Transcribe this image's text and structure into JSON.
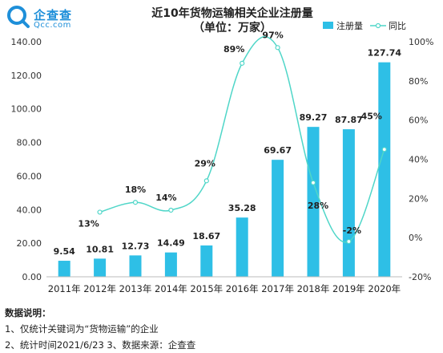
{
  "logo": {
    "name": "企查查",
    "domain": "Qcc.com"
  },
  "chart_data": {
    "type": "bar",
    "title": "近10年货物运输相关企业注册量",
    "subtitle": "（单位：万家）",
    "categories": [
      "2011年",
      "2012年",
      "2013年",
      "2014年",
      "2015年",
      "2016年",
      "2017年",
      "2018年",
      "2019年",
      "2020年"
    ],
    "series": [
      {
        "name": "注册量",
        "type": "bar",
        "axis": "left",
        "color": "#2ebfe6",
        "values": [
          9.54,
          10.81,
          12.73,
          14.49,
          18.67,
          35.28,
          69.67,
          89.27,
          87.87,
          127.74
        ],
        "labels": [
          "9.54",
          "10.81",
          "12.73",
          "14.49",
          "18.67",
          "35.28",
          "69.67",
          "89.27",
          "87.87",
          "127.74"
        ]
      },
      {
        "name": "同比",
        "type": "line",
        "axis": "right",
        "color": "#4fd6c8",
        "values": [
          null,
          13,
          18,
          14,
          29,
          89,
          97,
          28,
          -2,
          45
        ],
        "labels": [
          "",
          "13%",
          "18%",
          "14%",
          "29%",
          "89%",
          "97%",
          "28%",
          "-2%",
          "45%"
        ]
      }
    ],
    "y_left": {
      "min": 0,
      "max": 140,
      "ticks": [
        "0.00",
        "20.00",
        "40.00",
        "60.00",
        "80.00",
        "100.00",
        "120.00",
        "140.00"
      ]
    },
    "y_right": {
      "min": -20,
      "max": 100,
      "ticks": [
        "-20%",
        "0%",
        "20%",
        "40%",
        "60%",
        "80%",
        "100%"
      ]
    },
    "legend": {
      "position": "top-right"
    },
    "grid": false
  },
  "notes": {
    "title": "数据说明：",
    "line1": "1、仅统计关键词为“货物运输”的企业",
    "line2": "2、统计时间2021/6/23   3、数据来源：企查查"
  }
}
